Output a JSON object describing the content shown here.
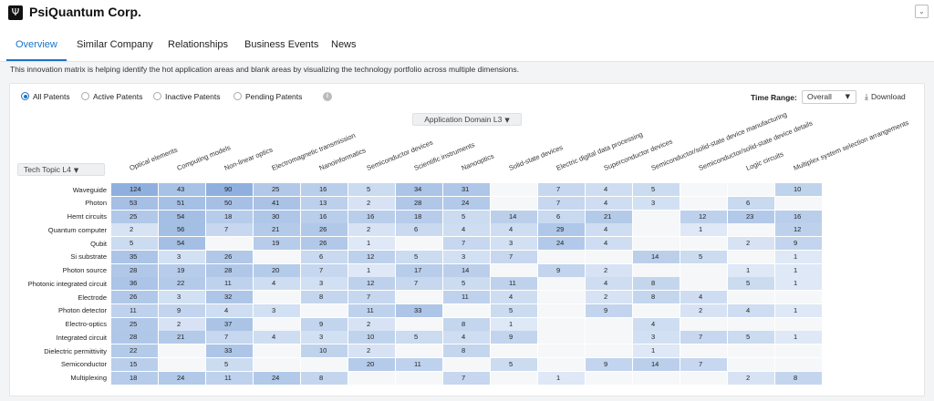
{
  "header": {
    "logo_glyph": "Ψ",
    "company": "PsiQuantum Corp.",
    "collapse_glyph": "⌄"
  },
  "tabs": [
    {
      "label": "Overview",
      "active": true
    },
    {
      "label": "Similar Company",
      "active": false
    },
    {
      "label": "Relationships",
      "active": false
    },
    {
      "label": "Business Events",
      "active": false
    },
    {
      "label": "News",
      "active": false
    }
  ],
  "description": "This innovation matrix is helping identify the hot application areas and blank areas by visualizing the technology portfolio across multiple dimensions.",
  "filters": {
    "options": [
      {
        "label": "All Patents",
        "checked": true
      },
      {
        "label": "Active Patents",
        "checked": false
      },
      {
        "label": "Inactive Patents",
        "checked": false
      },
      {
        "label": "Pending Patents",
        "checked": false
      }
    ],
    "info_glyph": "i"
  },
  "time_range": {
    "label": "Time Range:",
    "value": "Overall",
    "caret": "▼"
  },
  "download": {
    "icon": "⤓",
    "label": "Download"
  },
  "matrix": {
    "column_dimension": "Application Domain L3",
    "row_dimension": "Tech Topic L4",
    "caret": "▼",
    "columns": [
      "Optical elements",
      "Computing models",
      "Non-linear optics",
      "Electromagnetic transmission",
      "Nanoinformatics",
      "Semiconductor devices",
      "Scientific instruments",
      "Nanooptics",
      "Solid-state devices",
      "Electric digital data processing",
      "Superconductor devices",
      "Semiconductor/solid-state device manufacturing",
      "Semiconductor/solid-state device details",
      "Logic circuits",
      "Multiplex system selection arrangements"
    ],
    "rows": [
      {
        "label": "Waveguide",
        "values": [
          124,
          43,
          90,
          25,
          16,
          5,
          34,
          31,
          null,
          7,
          4,
          5,
          null,
          null,
          10
        ]
      },
      {
        "label": "Photon",
        "values": [
          53,
          51,
          50,
          41,
          13,
          2,
          28,
          24,
          null,
          7,
          4,
          3,
          null,
          6,
          null
        ]
      },
      {
        "label": "Hemt circuits",
        "values": [
          25,
          54,
          18,
          30,
          16,
          16,
          18,
          5,
          14,
          6,
          21,
          null,
          12,
          23,
          16
        ]
      },
      {
        "label": "Quantum computer",
        "values": [
          2,
          56,
          7,
          21,
          26,
          2,
          6,
          4,
          4,
          29,
          4,
          null,
          1,
          null,
          12
        ]
      },
      {
        "label": "Qubit",
        "values": [
          5,
          54,
          null,
          19,
          26,
          1,
          null,
          7,
          3,
          24,
          4,
          null,
          null,
          2,
          9
        ]
      },
      {
        "label": "Si substrate",
        "values": [
          35,
          3,
          26,
          null,
          6,
          12,
          5,
          3,
          7,
          null,
          null,
          14,
          5,
          null,
          1
        ]
      },
      {
        "label": "Photon source",
        "values": [
          28,
          19,
          28,
          20,
          7,
          1,
          17,
          14,
          null,
          9,
          2,
          null,
          null,
          1,
          1
        ]
      },
      {
        "label": "Photonic integrated circuit",
        "values": [
          36,
          22,
          11,
          4,
          3,
          12,
          7,
          5,
          11,
          null,
          4,
          8,
          null,
          5,
          1
        ]
      },
      {
        "label": "Electrode",
        "values": [
          26,
          3,
          32,
          null,
          8,
          7,
          null,
          11,
          4,
          null,
          2,
          8,
          4,
          null,
          null
        ]
      },
      {
        "label": "Photon detector",
        "values": [
          11,
          9,
          4,
          3,
          null,
          11,
          33,
          null,
          5,
          null,
          9,
          null,
          2,
          4,
          1
        ]
      },
      {
        "label": "Electro-optics",
        "values": [
          25,
          2,
          37,
          null,
          9,
          2,
          null,
          8,
          1,
          null,
          null,
          4,
          null,
          null,
          null
        ]
      },
      {
        "label": "Integrated circuit",
        "values": [
          28,
          21,
          7,
          4,
          3,
          10,
          5,
          4,
          9,
          null,
          null,
          3,
          7,
          5,
          1
        ]
      },
      {
        "label": "Dielectric permittivity",
        "values": [
          22,
          null,
          33,
          null,
          10,
          2,
          null,
          8,
          null,
          null,
          null,
          1,
          null,
          null,
          null
        ]
      },
      {
        "label": "Semiconductor",
        "values": [
          15,
          null,
          5,
          null,
          null,
          20,
          11,
          null,
          5,
          null,
          9,
          14,
          7,
          null,
          null
        ]
      },
      {
        "label": "Multiplexing",
        "values": [
          18,
          24,
          11,
          24,
          8,
          null,
          null,
          7,
          null,
          1,
          null,
          null,
          null,
          2,
          8
        ]
      }
    ]
  }
}
